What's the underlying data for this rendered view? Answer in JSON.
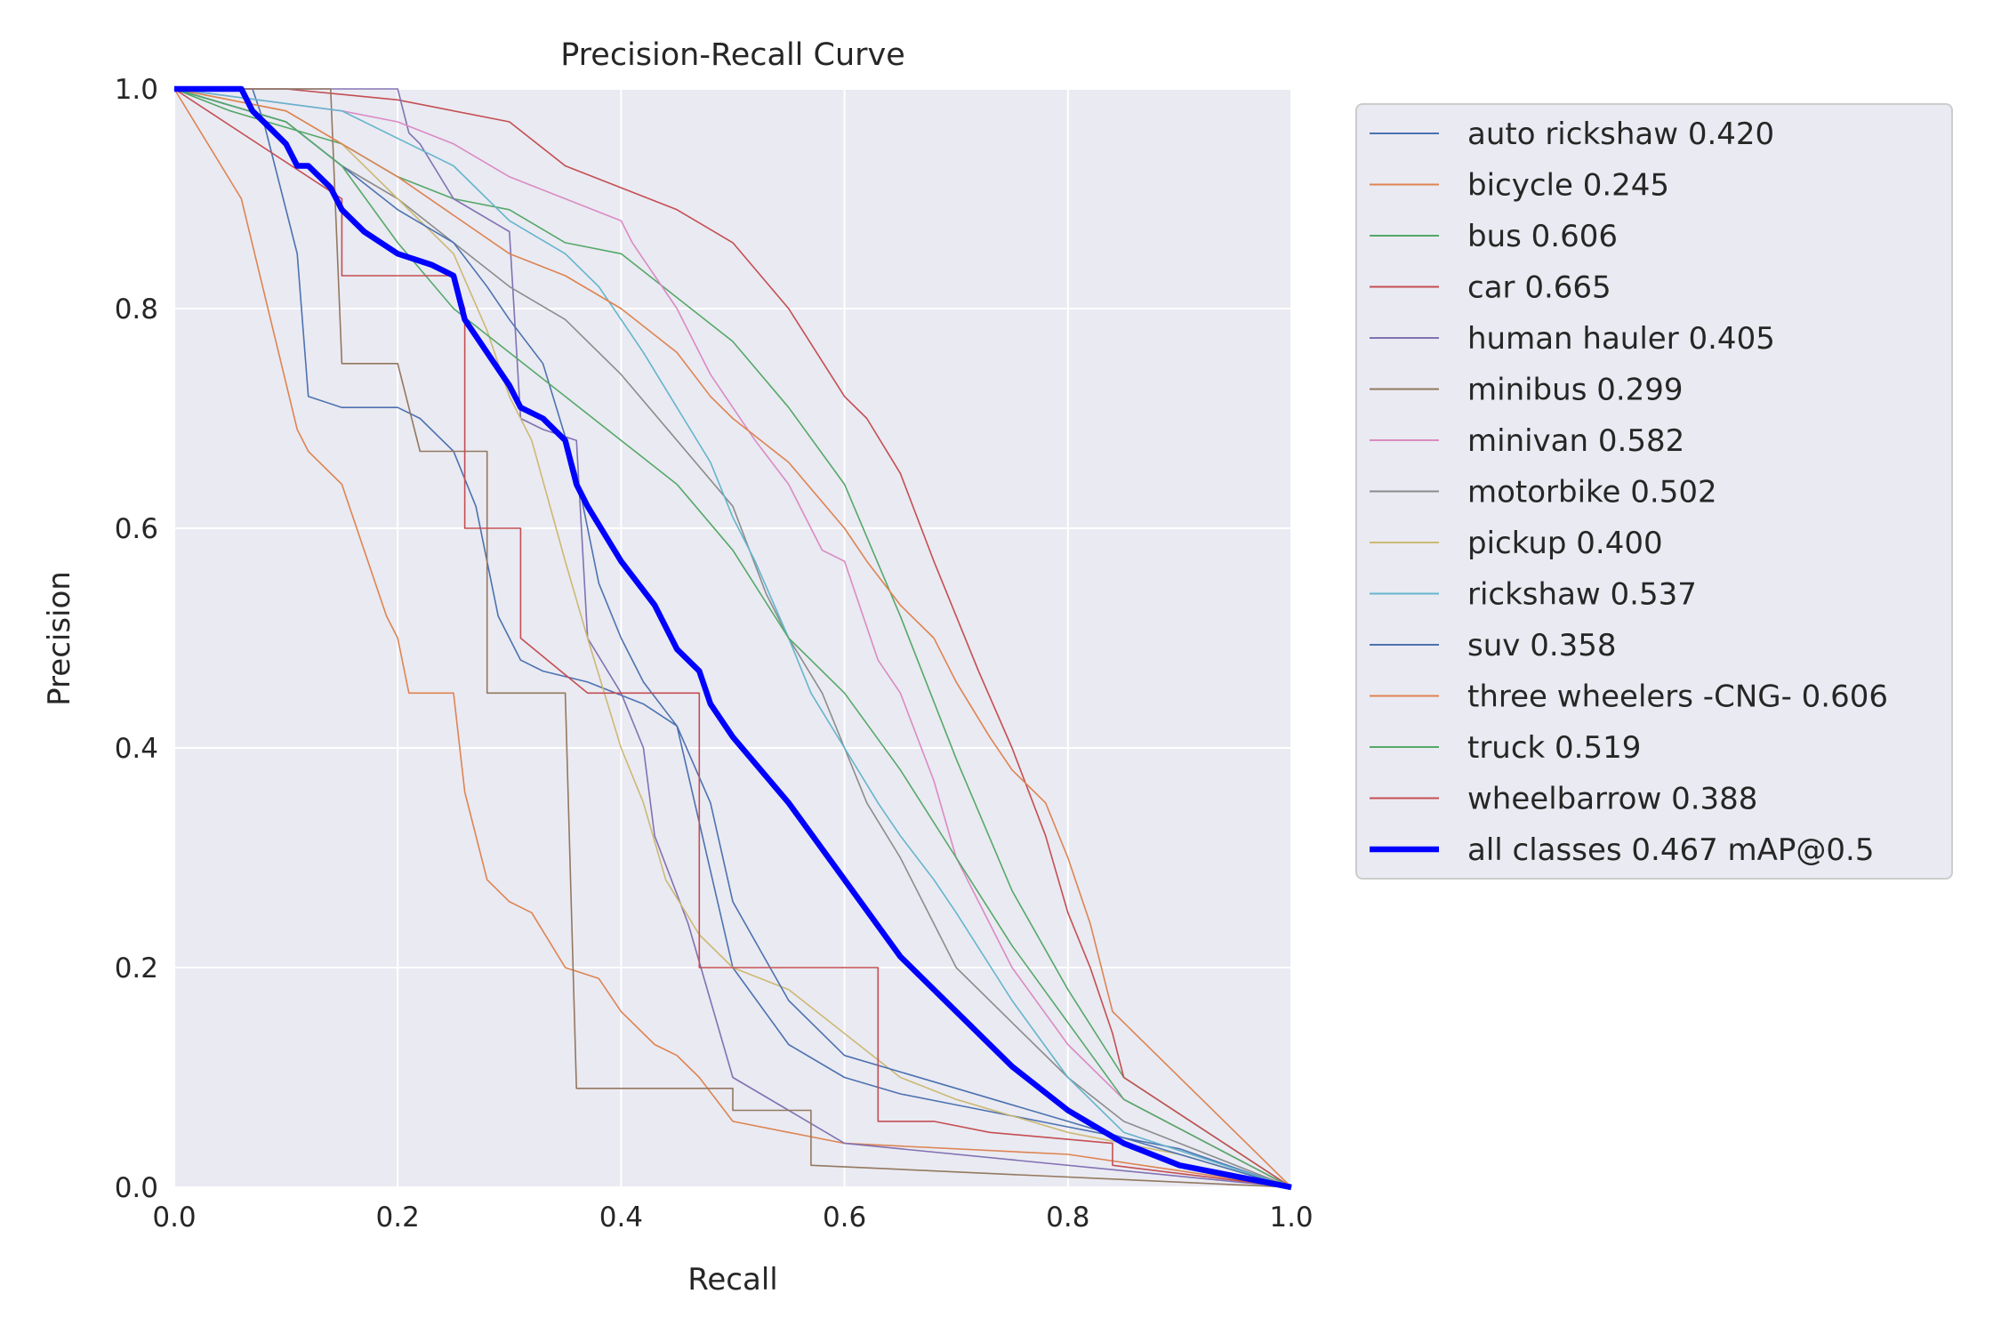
{
  "chart_data": {
    "type": "line",
    "title": "Precision-Recall Curve",
    "xlabel": "Recall",
    "ylabel": "Precision",
    "xlim": [
      0,
      1
    ],
    "ylim": [
      0,
      1
    ],
    "xticks": [
      "0.0",
      "0.2",
      "0.4",
      "0.6",
      "0.8",
      "1.0"
    ],
    "yticks": [
      "0.0",
      "0.2",
      "0.4",
      "0.6",
      "0.8",
      "1.0"
    ],
    "grid": true,
    "legend_position": "outside-right",
    "background": "#eaeaf2",
    "series": [
      {
        "name": "auto rickshaw 0.420",
        "color": "#4c72b0",
        "width": 1.6,
        "x": [
          0,
          0.07,
          0.08,
          0.11,
          0.12,
          0.15,
          0.2,
          0.22,
          0.25,
          0.27,
          0.29,
          0.31,
          0.33,
          0.37,
          0.42,
          0.45,
          0.5,
          0.55,
          0.6,
          0.65,
          0.7,
          0.8,
          0.9,
          1.0
        ],
        "y": [
          1,
          1,
          0.97,
          0.85,
          0.72,
          0.71,
          0.71,
          0.7,
          0.67,
          0.62,
          0.52,
          0.48,
          0.47,
          0.46,
          0.44,
          0.42,
          0.2,
          0.13,
          0.1,
          0.085,
          0.075,
          0.055,
          0.035,
          0
        ]
      },
      {
        "name": "bicycle 0.245",
        "color": "#dd8452",
        "width": 1.6,
        "x": [
          0,
          0.06,
          0.11,
          0.12,
          0.15,
          0.17,
          0.19,
          0.2,
          0.21,
          0.25,
          0.26,
          0.28,
          0.3,
          0.32,
          0.35,
          0.38,
          0.4,
          0.43,
          0.45,
          0.47,
          0.5,
          0.55,
          0.6,
          0.8,
          1.0
        ],
        "y": [
          1,
          0.9,
          0.69,
          0.67,
          0.64,
          0.58,
          0.52,
          0.5,
          0.45,
          0.45,
          0.36,
          0.28,
          0.26,
          0.25,
          0.2,
          0.19,
          0.16,
          0.13,
          0.12,
          0.1,
          0.06,
          0.05,
          0.04,
          0.03,
          0
        ]
      },
      {
        "name": "bus 0.606",
        "color": "#55a868",
        "width": 1.6,
        "x": [
          0,
          0.05,
          0.15,
          0.2,
          0.25,
          0.3,
          0.35,
          0.4,
          0.45,
          0.5,
          0.55,
          0.6,
          0.65,
          0.7,
          0.75,
          0.8,
          0.85,
          1.0
        ],
        "y": [
          1,
          0.98,
          0.95,
          0.92,
          0.9,
          0.89,
          0.86,
          0.85,
          0.81,
          0.77,
          0.71,
          0.64,
          0.52,
          0.39,
          0.27,
          0.18,
          0.1,
          0
        ]
      },
      {
        "name": "car 0.665",
        "color": "#c44e52",
        "width": 1.6,
        "x": [
          0,
          0.1,
          0.2,
          0.3,
          0.35,
          0.4,
          0.45,
          0.5,
          0.55,
          0.6,
          0.62,
          0.65,
          0.68,
          0.7,
          0.72,
          0.75,
          0.78,
          0.8,
          0.82,
          0.84,
          0.85,
          1.0
        ],
        "y": [
          1,
          1,
          0.99,
          0.97,
          0.93,
          0.91,
          0.89,
          0.86,
          0.8,
          0.72,
          0.7,
          0.65,
          0.57,
          0.52,
          0.47,
          0.4,
          0.32,
          0.25,
          0.2,
          0.14,
          0.1,
          0
        ]
      },
      {
        "name": "human hauler 0.405",
        "color": "#8172b3",
        "width": 1.6,
        "x": [
          0,
          0.2,
          0.21,
          0.22,
          0.25,
          0.3,
          0.31,
          0.33,
          0.36,
          0.37,
          0.4,
          0.42,
          0.43,
          0.46,
          0.48,
          0.5,
          0.55,
          0.6,
          1.0
        ],
        "y": [
          1,
          1,
          0.96,
          0.95,
          0.9,
          0.87,
          0.7,
          0.69,
          0.68,
          0.5,
          0.45,
          0.4,
          0.32,
          0.24,
          0.17,
          0.1,
          0.07,
          0.04,
          0
        ]
      },
      {
        "name": "minibus 0.299",
        "color": "#937860",
        "width": 1.6,
        "x": [
          0,
          0.14,
          0.15,
          0.2,
          0.22,
          0.25,
          0.28,
          0.28,
          0.35,
          0.36,
          0.45,
          0.5,
          0.5,
          0.57,
          0.57,
          1.0
        ],
        "y": [
          1,
          1,
          0.75,
          0.75,
          0.67,
          0.67,
          0.67,
          0.45,
          0.45,
          0.09,
          0.09,
          0.09,
          0.07,
          0.07,
          0.02,
          0
        ]
      },
      {
        "name": "minivan 0.582",
        "color": "#da8bc3",
        "width": 1.6,
        "x": [
          0,
          0.15,
          0.2,
          0.25,
          0.3,
          0.35,
          0.4,
          0.41,
          0.45,
          0.48,
          0.5,
          0.52,
          0.55,
          0.58,
          0.6,
          0.63,
          0.65,
          0.68,
          0.7,
          0.75,
          0.8,
          0.85,
          1.0
        ],
        "y": [
          1,
          0.98,
          0.97,
          0.95,
          0.92,
          0.9,
          0.88,
          0.86,
          0.8,
          0.74,
          0.71,
          0.68,
          0.64,
          0.58,
          0.57,
          0.48,
          0.45,
          0.37,
          0.3,
          0.2,
          0.13,
          0.08,
          0
        ]
      },
      {
        "name": "motorbike 0.502",
        "color": "#8c8c8c",
        "width": 1.6,
        "x": [
          0,
          0.1,
          0.15,
          0.2,
          0.25,
          0.3,
          0.35,
          0.4,
          0.45,
          0.5,
          0.53,
          0.55,
          0.58,
          0.6,
          0.62,
          0.65,
          0.7,
          0.75,
          0.8,
          0.85,
          1.0
        ],
        "y": [
          1,
          0.97,
          0.93,
          0.9,
          0.86,
          0.82,
          0.79,
          0.74,
          0.68,
          0.62,
          0.54,
          0.5,
          0.45,
          0.4,
          0.35,
          0.3,
          0.2,
          0.15,
          0.1,
          0.06,
          0
        ]
      },
      {
        "name": "pickup 0.400",
        "color": "#ccb974",
        "width": 1.6,
        "x": [
          0,
          0.1,
          0.15,
          0.2,
          0.25,
          0.28,
          0.3,
          0.32,
          0.35,
          0.37,
          0.4,
          0.42,
          0.44,
          0.47,
          0.5,
          0.55,
          0.6,
          0.65,
          0.7,
          0.8,
          0.9,
          1.0
        ],
        "y": [
          1,
          0.98,
          0.95,
          0.9,
          0.85,
          0.78,
          0.72,
          0.68,
          0.57,
          0.5,
          0.4,
          0.35,
          0.28,
          0.23,
          0.2,
          0.18,
          0.14,
          0.1,
          0.08,
          0.05,
          0.03,
          0
        ]
      },
      {
        "name": "rickshaw 0.537",
        "color": "#64b5cd",
        "width": 1.6,
        "x": [
          0,
          0.15,
          0.25,
          0.3,
          0.35,
          0.38,
          0.4,
          0.42,
          0.45,
          0.48,
          0.5,
          0.52,
          0.55,
          0.57,
          0.6,
          0.63,
          0.65,
          0.68,
          0.7,
          0.75,
          0.8,
          0.85,
          1.0
        ],
        "y": [
          1,
          0.98,
          0.93,
          0.88,
          0.85,
          0.82,
          0.79,
          0.76,
          0.71,
          0.66,
          0.61,
          0.57,
          0.5,
          0.45,
          0.4,
          0.35,
          0.32,
          0.28,
          0.25,
          0.17,
          0.1,
          0.05,
          0
        ]
      },
      {
        "name": "suv 0.358",
        "color": "#4c72b0",
        "width": 1.6,
        "x": [
          0,
          0.1,
          0.15,
          0.2,
          0.25,
          0.28,
          0.3,
          0.33,
          0.36,
          0.38,
          0.4,
          0.42,
          0.45,
          0.48,
          0.5,
          0.55,
          0.6,
          0.7,
          0.8,
          0.9,
          1.0
        ],
        "y": [
          1,
          0.97,
          0.93,
          0.89,
          0.86,
          0.82,
          0.79,
          0.75,
          0.65,
          0.55,
          0.5,
          0.46,
          0.42,
          0.35,
          0.26,
          0.17,
          0.12,
          0.09,
          0.06,
          0.03,
          0
        ]
      },
      {
        "name": "three wheelers -CNG- 0.606",
        "color": "#dd8452",
        "width": 1.6,
        "x": [
          0,
          0.1,
          0.2,
          0.3,
          0.35,
          0.4,
          0.45,
          0.48,
          0.5,
          0.55,
          0.6,
          0.62,
          0.65,
          0.68,
          0.7,
          0.73,
          0.75,
          0.78,
          0.8,
          0.82,
          0.84,
          1.0
        ],
        "y": [
          1,
          0.98,
          0.92,
          0.85,
          0.83,
          0.8,
          0.76,
          0.72,
          0.7,
          0.66,
          0.6,
          0.57,
          0.53,
          0.5,
          0.46,
          0.41,
          0.38,
          0.35,
          0.3,
          0.24,
          0.16,
          0
        ]
      },
      {
        "name": "truck 0.519",
        "color": "#55a868",
        "width": 1.6,
        "x": [
          0,
          0.1,
          0.15,
          0.2,
          0.25,
          0.3,
          0.35,
          0.4,
          0.45,
          0.5,
          0.55,
          0.6,
          0.65,
          0.7,
          0.75,
          0.8,
          0.85,
          1.0
        ],
        "y": [
          1,
          0.97,
          0.93,
          0.86,
          0.8,
          0.76,
          0.72,
          0.68,
          0.64,
          0.58,
          0.5,
          0.45,
          0.38,
          0.3,
          0.22,
          0.15,
          0.08,
          0
        ]
      },
      {
        "name": "wheelbarrow 0.388",
        "color": "#c44e52",
        "width": 1.6,
        "x": [
          0,
          0.15,
          0.15,
          0.25,
          0.26,
          0.26,
          0.31,
          0.31,
          0.37,
          0.47,
          0.47,
          0.5,
          0.55,
          0.63,
          0.63,
          0.68,
          0.73,
          0.84,
          0.84,
          1.0
        ],
        "y": [
          1,
          0.9,
          0.83,
          0.83,
          0.8,
          0.6,
          0.6,
          0.5,
          0.45,
          0.45,
          0.2,
          0.2,
          0.2,
          0.2,
          0.06,
          0.06,
          0.05,
          0.04,
          0.02,
          0
        ]
      },
      {
        "name": "all classes 0.467 mAP@0.5",
        "color": "#0000ff",
        "width": 6.5,
        "x": [
          0,
          0.06,
          0.07,
          0.08,
          0.1,
          0.11,
          0.12,
          0.14,
          0.15,
          0.17,
          0.2,
          0.23,
          0.25,
          0.26,
          0.28,
          0.3,
          0.31,
          0.33,
          0.35,
          0.36,
          0.37,
          0.4,
          0.43,
          0.45,
          0.47,
          0.48,
          0.5,
          0.55,
          0.6,
          0.65,
          0.7,
          0.75,
          0.8,
          0.85,
          0.9,
          1.0
        ],
        "y": [
          1,
          1,
          0.98,
          0.97,
          0.95,
          0.93,
          0.93,
          0.91,
          0.89,
          0.87,
          0.85,
          0.84,
          0.83,
          0.79,
          0.76,
          0.73,
          0.71,
          0.7,
          0.68,
          0.64,
          0.62,
          0.57,
          0.53,
          0.49,
          0.47,
          0.44,
          0.41,
          0.35,
          0.28,
          0.21,
          0.16,
          0.11,
          0.07,
          0.04,
          0.02,
          0
        ]
      }
    ]
  }
}
